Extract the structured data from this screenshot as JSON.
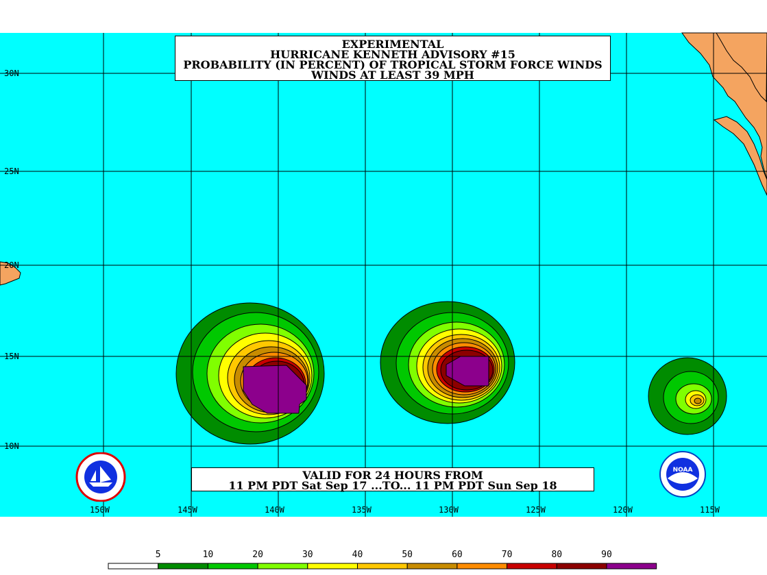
{
  "title": {
    "line1": "EXPERIMENTAL",
    "line2": "HURRICANE KENNETH ADVISORY #15",
    "line3": "PROBABILITY (IN PERCENT) OF TROPICAL STORM FORCE WINDS",
    "line4": "WINDS AT LEAST 39 MPH"
  },
  "valid": {
    "line1": "VALID FOR 24 HOURS FROM",
    "line2": "11 PM PDT Sat Sep 17 ...TO... 11 PM PDT Sun Sep 18"
  },
  "lat_labels": [
    "30N",
    "25N",
    "20N",
    "15N",
    "10N"
  ],
  "lon_labels": [
    "150W",
    "145W",
    "140W",
    "135W",
    "130W",
    "125W",
    "120W",
    "115W"
  ],
  "legend": {
    "labels": [
      "5",
      "10",
      "20",
      "30",
      "40",
      "50",
      "60",
      "70",
      "80",
      "90"
    ],
    "colors": [
      "#ffffff",
      "#008c00",
      "#00c800",
      "#80ff00",
      "#ffff00",
      "#ffc800",
      "#c88c00",
      "#ff8c00",
      "#c80000",
      "#8c0000",
      "#8c008c"
    ]
  },
  "colors": {
    "ocean": "#00ffff",
    "land": "#f4a460",
    "grid": "#000000"
  },
  "logos": {
    "left": "nws-logo",
    "right": "noaa-logo",
    "right_text": "NOAA"
  }
}
